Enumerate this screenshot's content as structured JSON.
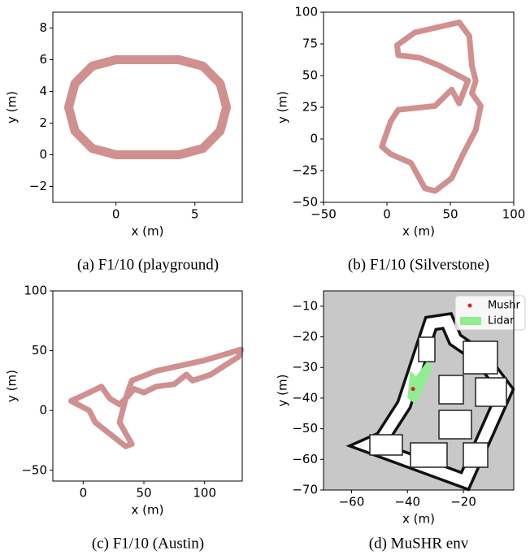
{
  "chart_data": [
    {
      "type": "line",
      "caption": "(a) F1/10 (playground)",
      "xlabel": "x (m)",
      "ylabel": "y (m)",
      "color": "#d09090",
      "x": [
        0,
        4,
        5.5,
        6.6,
        7,
        6.6,
        5.5,
        4,
        0,
        -1.5,
        -2.6,
        -3,
        -2.6,
        -1.5,
        0
      ],
      "values": [
        0,
        0,
        0.4,
        1.5,
        3,
        4.5,
        5.6,
        6,
        6,
        5.6,
        4.5,
        3,
        1.5,
        0.4,
        0
      ],
      "xlim": [
        -4,
        8
      ],
      "ylim": [
        -3,
        9
      ],
      "xticks": [
        0,
        5
      ],
      "yticks": [
        {
          "value": -2,
          "label": "−2"
        },
        0,
        2,
        4,
        6,
        8
      ]
    },
    {
      "type": "line",
      "caption": "(b) F1/10 (Silverstone)",
      "xlabel": "x (m)",
      "ylabel": "y (m)",
      "color": "#d09090",
      "x": [
        22,
        57,
        65,
        67,
        70,
        67,
        74,
        70,
        60,
        51,
        38,
        30,
        19,
        3,
        -4,
        3,
        9,
        38,
        51,
        57,
        64,
        41,
        26,
        9,
        8,
        22
      ],
      "values": [
        84,
        92,
        81,
        58,
        46,
        36,
        26,
        7,
        -12,
        -31,
        -41,
        -39,
        -19,
        -12,
        -6,
        14,
        23,
        26,
        39,
        28,
        46,
        58,
        64,
        66,
        74,
        84
      ],
      "xlim": [
        -50,
        100
      ],
      "ylim": [
        -50,
        100
      ],
      "xticks": [
        {
          "value": -50,
          "label": "−50"
        },
        0,
        50,
        100
      ],
      "yticks": [
        {
          "value": -50,
          "label": "−50"
        },
        {
          "value": -25,
          "label": "−25"
        },
        0,
        25,
        50,
        75,
        100
      ]
    },
    {
      "type": "line",
      "caption": "(c) F1/10 (Austin)",
      "xlabel": "x (m)",
      "ylabel": "y (m)",
      "color": "#d09090",
      "x": [
        -10,
        5,
        15,
        22,
        30,
        35,
        40,
        60,
        100,
        130,
        128,
        105,
        90,
        85,
        75,
        60,
        50,
        42,
        35,
        30,
        40,
        35,
        10,
        5,
        -10
      ],
      "values": [
        8,
        15,
        20,
        10,
        5,
        10,
        25,
        33,
        42,
        51,
        45,
        30,
        25,
        30,
        22,
        20,
        15,
        18,
        10,
        -10,
        -28,
        -30,
        -10,
        0,
        8
      ],
      "xlim": [
        -25,
        131
      ],
      "ylim": [
        -59,
        100
      ],
      "xticks": [
        0,
        50,
        100
      ],
      "yticks": [
        {
          "value": -50,
          "label": "−50"
        },
        0,
        50,
        100
      ]
    },
    {
      "type": "map",
      "caption": "(d) MuSHR env",
      "xlabel": "x (m)",
      "ylabel": "y (m)",
      "legend": "upper right",
      "series": [
        {
          "name": "Mushr",
          "color": "#e02020",
          "x": [
            -38
          ],
          "values": [
            -37
          ]
        },
        {
          "name": "Lidar",
          "color": "#90ee90",
          "x": [
            -40,
            -37,
            -31,
            -33,
            -37,
            -39
          ],
          "values": [
            -40,
            -42,
            -30,
            -28,
            -33,
            -31
          ]
        }
      ],
      "xlim": [
        -70,
        -2
      ],
      "ylim": [
        -70,
        -5
      ],
      "xticks": [
        {
          "value": -60,
          "label": "−60"
        },
        {
          "value": -40,
          "label": "−40"
        },
        {
          "value": -20,
          "label": "−20"
        }
      ],
      "yticks": [
        {
          "value": -70,
          "label": "−70"
        },
        {
          "value": -60,
          "label": "−60"
        },
        {
          "value": -50,
          "label": "−50"
        },
        {
          "value": -40,
          "label": "−40"
        },
        {
          "value": -30,
          "label": "−30"
        },
        {
          "value": -20,
          "label": "−20"
        },
        {
          "value": -10,
          "label": "−10"
        }
      ]
    }
  ]
}
